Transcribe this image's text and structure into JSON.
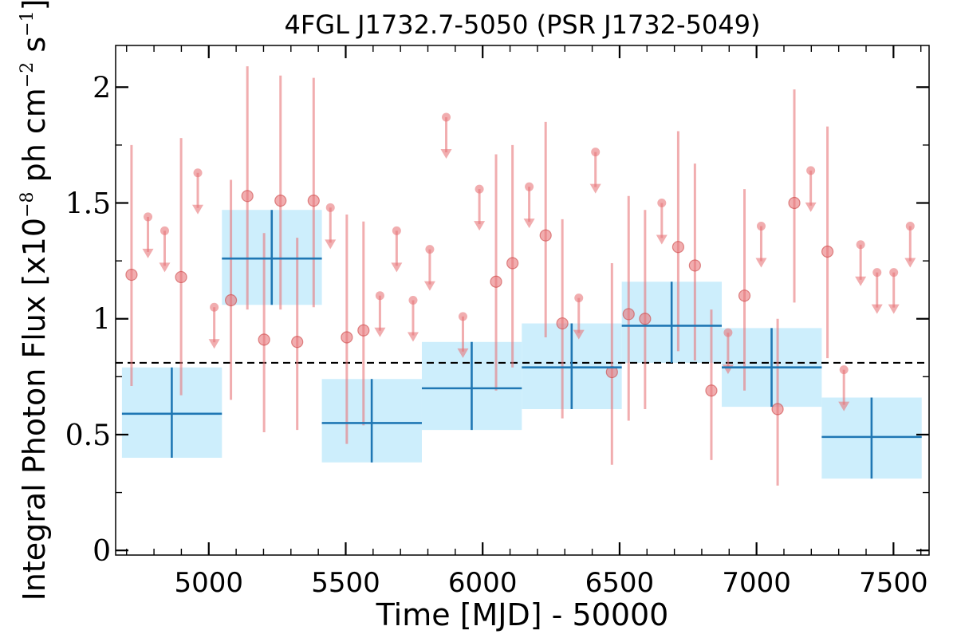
{
  "chart_data": {
    "type": "scatter",
    "title": "4FGL J1732.7-5050 (PSR J1732-5049)",
    "xlabel": "Time [MJD] - 50000",
    "ylabel": {
      "prefix": "Integral Photon Flux [x10",
      "exp1": "−8",
      "mid": " ph cm",
      "exp2": "−2",
      "mid2": " s",
      "exp3": "−1",
      "suffix": "]"
    },
    "xlim": [
      4660,
      7630
    ],
    "ylim": [
      -0.02,
      2.18
    ],
    "xticks": [
      {
        "value": 5000,
        "label": "5000"
      },
      {
        "value": 5500,
        "label": "5500"
      },
      {
        "value": 6000,
        "label": "6000"
      },
      {
        "value": 6500,
        "label": "6500"
      },
      {
        "value": 7000,
        "label": "7000"
      },
      {
        "value": 7500,
        "label": "7500"
      }
    ],
    "yticks": [
      {
        "value": 0,
        "label": "0"
      },
      {
        "value": 0.5,
        "label": "0.5"
      },
      {
        "value": 1,
        "label": "1"
      },
      {
        "value": 1.5,
        "label": "1.5"
      },
      {
        "value": 2,
        "label": "2"
      }
    ],
    "mean_flux": 0.81,
    "colors": {
      "short_bins": "#e8777a",
      "long_bins_band": "#cdeefc",
      "long_bins_line": "#1f77b4",
      "mean_line": "#000000"
    },
    "long_bins": [
      {
        "x": 4865,
        "xlo": 4683,
        "xhi": 5048,
        "y": 0.59,
        "ylo": 0.4,
        "yhi": 0.79
      },
      {
        "x": 5230,
        "xlo": 5048,
        "xhi": 5413,
        "y": 1.26,
        "ylo": 1.06,
        "yhi": 1.47
      },
      {
        "x": 5595,
        "xlo": 5413,
        "xhi": 5778,
        "y": 0.55,
        "ylo": 0.38,
        "yhi": 0.74
      },
      {
        "x": 5960,
        "xlo": 5778,
        "xhi": 6143,
        "y": 0.7,
        "ylo": 0.52,
        "yhi": 0.9
      },
      {
        "x": 6325,
        "xlo": 6143,
        "xhi": 6508,
        "y": 0.79,
        "ylo": 0.61,
        "yhi": 0.98
      },
      {
        "x": 6690,
        "xlo": 6508,
        "xhi": 6873,
        "y": 0.97,
        "ylo": 0.81,
        "yhi": 1.16
      },
      {
        "x": 7055,
        "xlo": 6873,
        "xhi": 7238,
        "y": 0.79,
        "ylo": 0.62,
        "yhi": 0.96
      },
      {
        "x": 7420,
        "xlo": 7238,
        "xhi": 7603,
        "y": 0.49,
        "ylo": 0.31,
        "yhi": 0.66
      }
    ],
    "short_bins": [
      {
        "x": 4718,
        "y": 1.19,
        "ylo": 0.71,
        "yhi": 1.75
      },
      {
        "x": 4778,
        "y": 1.44,
        "ul": true
      },
      {
        "x": 4839,
        "y": 1.38,
        "ul": true
      },
      {
        "x": 4899,
        "y": 1.18,
        "ylo": 0.67,
        "yhi": 1.78
      },
      {
        "x": 4960,
        "y": 1.63,
        "ul": true
      },
      {
        "x": 5020,
        "y": 1.05,
        "ul": true
      },
      {
        "x": 5081,
        "y": 1.08,
        "ylo": 0.65,
        "yhi": 1.6
      },
      {
        "x": 5141,
        "y": 1.53,
        "ylo": 1.04,
        "yhi": 2.09
      },
      {
        "x": 5202,
        "y": 0.91,
        "ylo": 0.51,
        "yhi": 1.37
      },
      {
        "x": 5262,
        "y": 1.51,
        "ylo": 1.04,
        "yhi": 2.05
      },
      {
        "x": 5323,
        "y": 0.9,
        "ylo": 0.52,
        "yhi": 1.35
      },
      {
        "x": 5383,
        "y": 1.51,
        "ylo": 1.05,
        "yhi": 2.04
      },
      {
        "x": 5444,
        "y": 1.48,
        "ul": true
      },
      {
        "x": 5504,
        "y": 0.92,
        "ylo": 0.46,
        "yhi": 1.45
      },
      {
        "x": 5565,
        "y": 0.95,
        "ylo": 0.54,
        "yhi": 1.42
      },
      {
        "x": 5625,
        "y": 1.1,
        "ul": true
      },
      {
        "x": 5686,
        "y": 1.38,
        "ul": true
      },
      {
        "x": 5746,
        "y": 1.08,
        "ul": true
      },
      {
        "x": 5807,
        "y": 1.3,
        "ul": true
      },
      {
        "x": 5867,
        "y": 1.87,
        "ul": true
      },
      {
        "x": 5928,
        "y": 1.01,
        "ul": true
      },
      {
        "x": 5988,
        "y": 1.56,
        "ul": true
      },
      {
        "x": 6049,
        "y": 1.16,
        "ylo": 0.69,
        "yhi": 1.71
      },
      {
        "x": 6109,
        "y": 1.24,
        "ylo": 0.79,
        "yhi": 1.75
      },
      {
        "x": 6170,
        "y": 1.57,
        "ul": true
      },
      {
        "x": 6230,
        "y": 1.36,
        "ylo": 0.92,
        "yhi": 1.85
      },
      {
        "x": 6291,
        "y": 0.98,
        "ylo": 0.57,
        "yhi": 1.43
      },
      {
        "x": 6351,
        "y": 1.09,
        "ul": true
      },
      {
        "x": 6412,
        "y": 1.72,
        "ul": true
      },
      {
        "x": 6472,
        "y": 0.77,
        "ylo": 0.37,
        "yhi": 1.24
      },
      {
        "x": 6533,
        "y": 1.02,
        "ylo": 0.56,
        "yhi": 1.53
      },
      {
        "x": 6593,
        "y": 1.0,
        "ylo": 0.61,
        "yhi": 1.47
      },
      {
        "x": 6654,
        "y": 1.5,
        "ul": true
      },
      {
        "x": 6714,
        "y": 1.31,
        "ylo": 0.86,
        "yhi": 1.81
      },
      {
        "x": 6775,
        "y": 1.23,
        "ylo": 0.82,
        "yhi": 1.67
      },
      {
        "x": 6835,
        "y": 0.69,
        "ylo": 0.39,
        "yhi": 1.04
      },
      {
        "x": 6896,
        "y": 0.94,
        "ul": true
      },
      {
        "x": 6956,
        "y": 1.1,
        "ylo": 0.69,
        "yhi": 1.56
      },
      {
        "x": 7017,
        "y": 1.4,
        "ul": true
      },
      {
        "x": 7077,
        "y": 0.61,
        "ylo": 0.28,
        "yhi": 1.0
      },
      {
        "x": 7138,
        "y": 1.5,
        "ylo": 1.07,
        "yhi": 1.99
      },
      {
        "x": 7198,
        "y": 1.64,
        "ul": true
      },
      {
        "x": 7259,
        "y": 1.29,
        "ylo": 0.83,
        "yhi": 1.83
      },
      {
        "x": 7319,
        "y": 0.78,
        "ul": true
      },
      {
        "x": 7380,
        "y": 1.32,
        "ul": true
      },
      {
        "x": 7440,
        "y": 1.2,
        "ul": true
      },
      {
        "x": 7501,
        "y": 1.2,
        "ul": true
      },
      {
        "x": 7561,
        "y": 1.4,
        "ul": true
      }
    ]
  }
}
